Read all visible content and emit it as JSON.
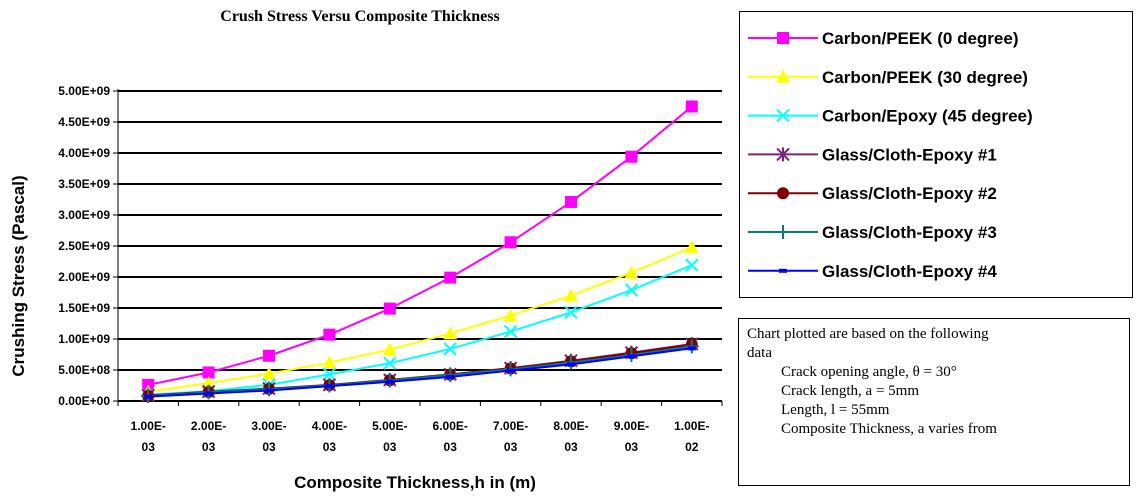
{
  "chart_data": {
    "type": "line",
    "title": "Crush Stress Versu Composite Thickness",
    "xlabel": "Composite Thickness,h in (m)",
    "ylabel": "Crushing Stress (Pascal)",
    "categories": [
      [
        "1.00E-",
        "03"
      ],
      [
        "2.00E-",
        "03"
      ],
      [
        "3.00E-",
        "03"
      ],
      [
        "4.00E-",
        "03"
      ],
      [
        "5.00E-",
        "03"
      ],
      [
        "6.00E-",
        "03"
      ],
      [
        "7.00E-",
        "03"
      ],
      [
        "8.00E-",
        "03"
      ],
      [
        "9.00E-",
        "03"
      ],
      [
        "1.00E-",
        "02"
      ]
    ],
    "x": [
      0.001,
      0.002,
      0.003,
      0.004,
      0.005,
      0.006,
      0.007,
      0.008,
      0.009,
      0.01
    ],
    "ylim": [
      0,
      5000000000
    ],
    "yticks": [
      {
        "value": 0,
        "label": "0.00E+00"
      },
      {
        "value": 500000000,
        "label": "5.00E+08"
      },
      {
        "value": 1000000000,
        "label": "1.00E+09"
      },
      {
        "value": 1500000000,
        "label": "1.50E+09"
      },
      {
        "value": 2000000000,
        "label": "2.00E+09"
      },
      {
        "value": 2500000000,
        "label": "2.50E+09"
      },
      {
        "value": 3000000000,
        "label": "3.00E+09"
      },
      {
        "value": 3500000000,
        "label": "3.50E+09"
      },
      {
        "value": 4000000000,
        "label": "4.00E+09"
      },
      {
        "value": 4500000000,
        "label": "4.50E+09"
      },
      {
        "value": 5000000000,
        "label": "5.00E+09"
      }
    ],
    "grid": "horizontal",
    "legend_position": "right",
    "series": [
      {
        "name": "Carbon/PEEK (0 degree)",
        "color": "#ff00ff",
        "marker": "square",
        "values": [
          260000000.0,
          460000000.0,
          730000000.0,
          1070000000.0,
          1490000000.0,
          1990000000.0,
          2560000000.0,
          3210000000.0,
          3940000000.0,
          4750000000.0
        ]
      },
      {
        "name": "Carbon/PEEK (30 degree)",
        "color": "#ffff00",
        "marker": "triangle",
        "values": [
          150000000.0,
          290000000.0,
          440000000.0,
          620000000.0,
          830000000.0,
          1090000000.0,
          1380000000.0,
          1700000000.0,
          2070000000.0,
          2480000000.0
        ]
      },
      {
        "name": "Carbon/Epoxy (45 degree)",
        "color": "#00ffff",
        "marker": "x",
        "values": [
          100000000.0,
          160000000.0,
          260000000.0,
          430000000.0,
          610000000.0,
          840000000.0,
          1120000000.0,
          1430000000.0,
          1790000000.0,
          2190000000.0
        ]
      },
      {
        "name": "Glass/Cloth-Epoxy #1",
        "color": "#7f1f7f",
        "marker": "star",
        "values": [
          90000000.0,
          150000000.0,
          200000000.0,
          260000000.0,
          340000000.0,
          430000000.0,
          530000000.0,
          650000000.0,
          780000000.0,
          920000000.0
        ]
      },
      {
        "name": "Glass/Cloth-Epoxy #2",
        "color": "#800000",
        "marker": "circle",
        "values": [
          85000000.0,
          145000000.0,
          195000000.0,
          255000000.0,
          335000000.0,
          425000000.0,
          525000000.0,
          640000000.0,
          770000000.0,
          910000000.0
        ]
      },
      {
        "name": "Glass/Cloth-Epoxy #3",
        "color": "#008080",
        "marker": "plus",
        "values": [
          80000000.0,
          140000000.0,
          190000000.0,
          250000000.0,
          330000000.0,
          420000000.0,
          510000000.0,
          620000000.0,
          740000000.0,
          880000000.0
        ]
      },
      {
        "name": "Glass/Cloth-Epoxy #4",
        "color": "#0000ff",
        "marker": "dash",
        "values": [
          70000000.0,
          120000000.0,
          170000000.0,
          240000000.0,
          310000000.0,
          390000000.0,
          490000000.0,
          590000000.0,
          720000000.0,
          850000000.0
        ]
      }
    ]
  },
  "note": {
    "line1": "Chart plotted are based on the following",
    "line2": "data",
    "line3": "Crack opening angle, θ = 30°",
    "line4": "Crack length, a = 5mm",
    "line5": "Length, l = 55mm",
    "line6": "Composite Thickness, a varies from"
  }
}
